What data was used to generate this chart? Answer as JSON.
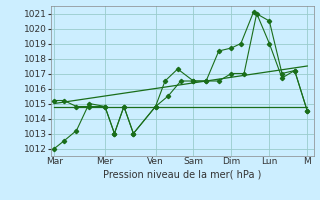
{
  "bg_color": "#cceeff",
  "grid_color": "#99cccc",
  "line_color": "#1a6e1a",
  "xlabel": "Pression niveau de la mer( hPa )",
  "ylim": [
    1011.5,
    1021.5
  ],
  "yticks": [
    1012,
    1013,
    1014,
    1015,
    1016,
    1017,
    1018,
    1019,
    1020,
    1021
  ],
  "day_labels": [
    "Mar",
    "Mer",
    "Ven",
    "Sam",
    "Dim",
    "Lun",
    "M"
  ],
  "day_positions": [
    0,
    16,
    32,
    44,
    56,
    68,
    80
  ],
  "xlim": [
    -1,
    82
  ],
  "series1_x": [
    0,
    3,
    7,
    11,
    16,
    19,
    22,
    25,
    32,
    35,
    39,
    44,
    48,
    52,
    56,
    59,
    63,
    68,
    72,
    76,
    80
  ],
  "series1_y": [
    1012.0,
    1012.5,
    1013.2,
    1015.0,
    1014.8,
    1013.0,
    1014.8,
    1013.0,
    1014.8,
    1016.5,
    1017.3,
    1016.5,
    1016.5,
    1018.5,
    1018.7,
    1019.0,
    1021.1,
    1020.5,
    1017.0,
    1017.2,
    1014.5
  ],
  "series2_x": [
    0,
    3,
    7,
    11,
    16,
    19,
    22,
    25,
    32,
    36,
    40,
    44,
    48,
    52,
    56,
    60,
    64,
    68,
    72,
    76,
    80
  ],
  "series2_y": [
    1015.2,
    1015.2,
    1014.8,
    1014.8,
    1014.8,
    1013.0,
    1014.8,
    1013.0,
    1014.8,
    1015.5,
    1016.5,
    1016.5,
    1016.5,
    1016.5,
    1017.0,
    1017.0,
    1021.0,
    1019.0,
    1016.7,
    1017.2,
    1014.5
  ],
  "series3_x": [
    0,
    80
  ],
  "series3_y": [
    1014.8,
    1014.8
  ],
  "trend_x": [
    0,
    80
  ],
  "trend_y": [
    1015.0,
    1017.5
  ]
}
